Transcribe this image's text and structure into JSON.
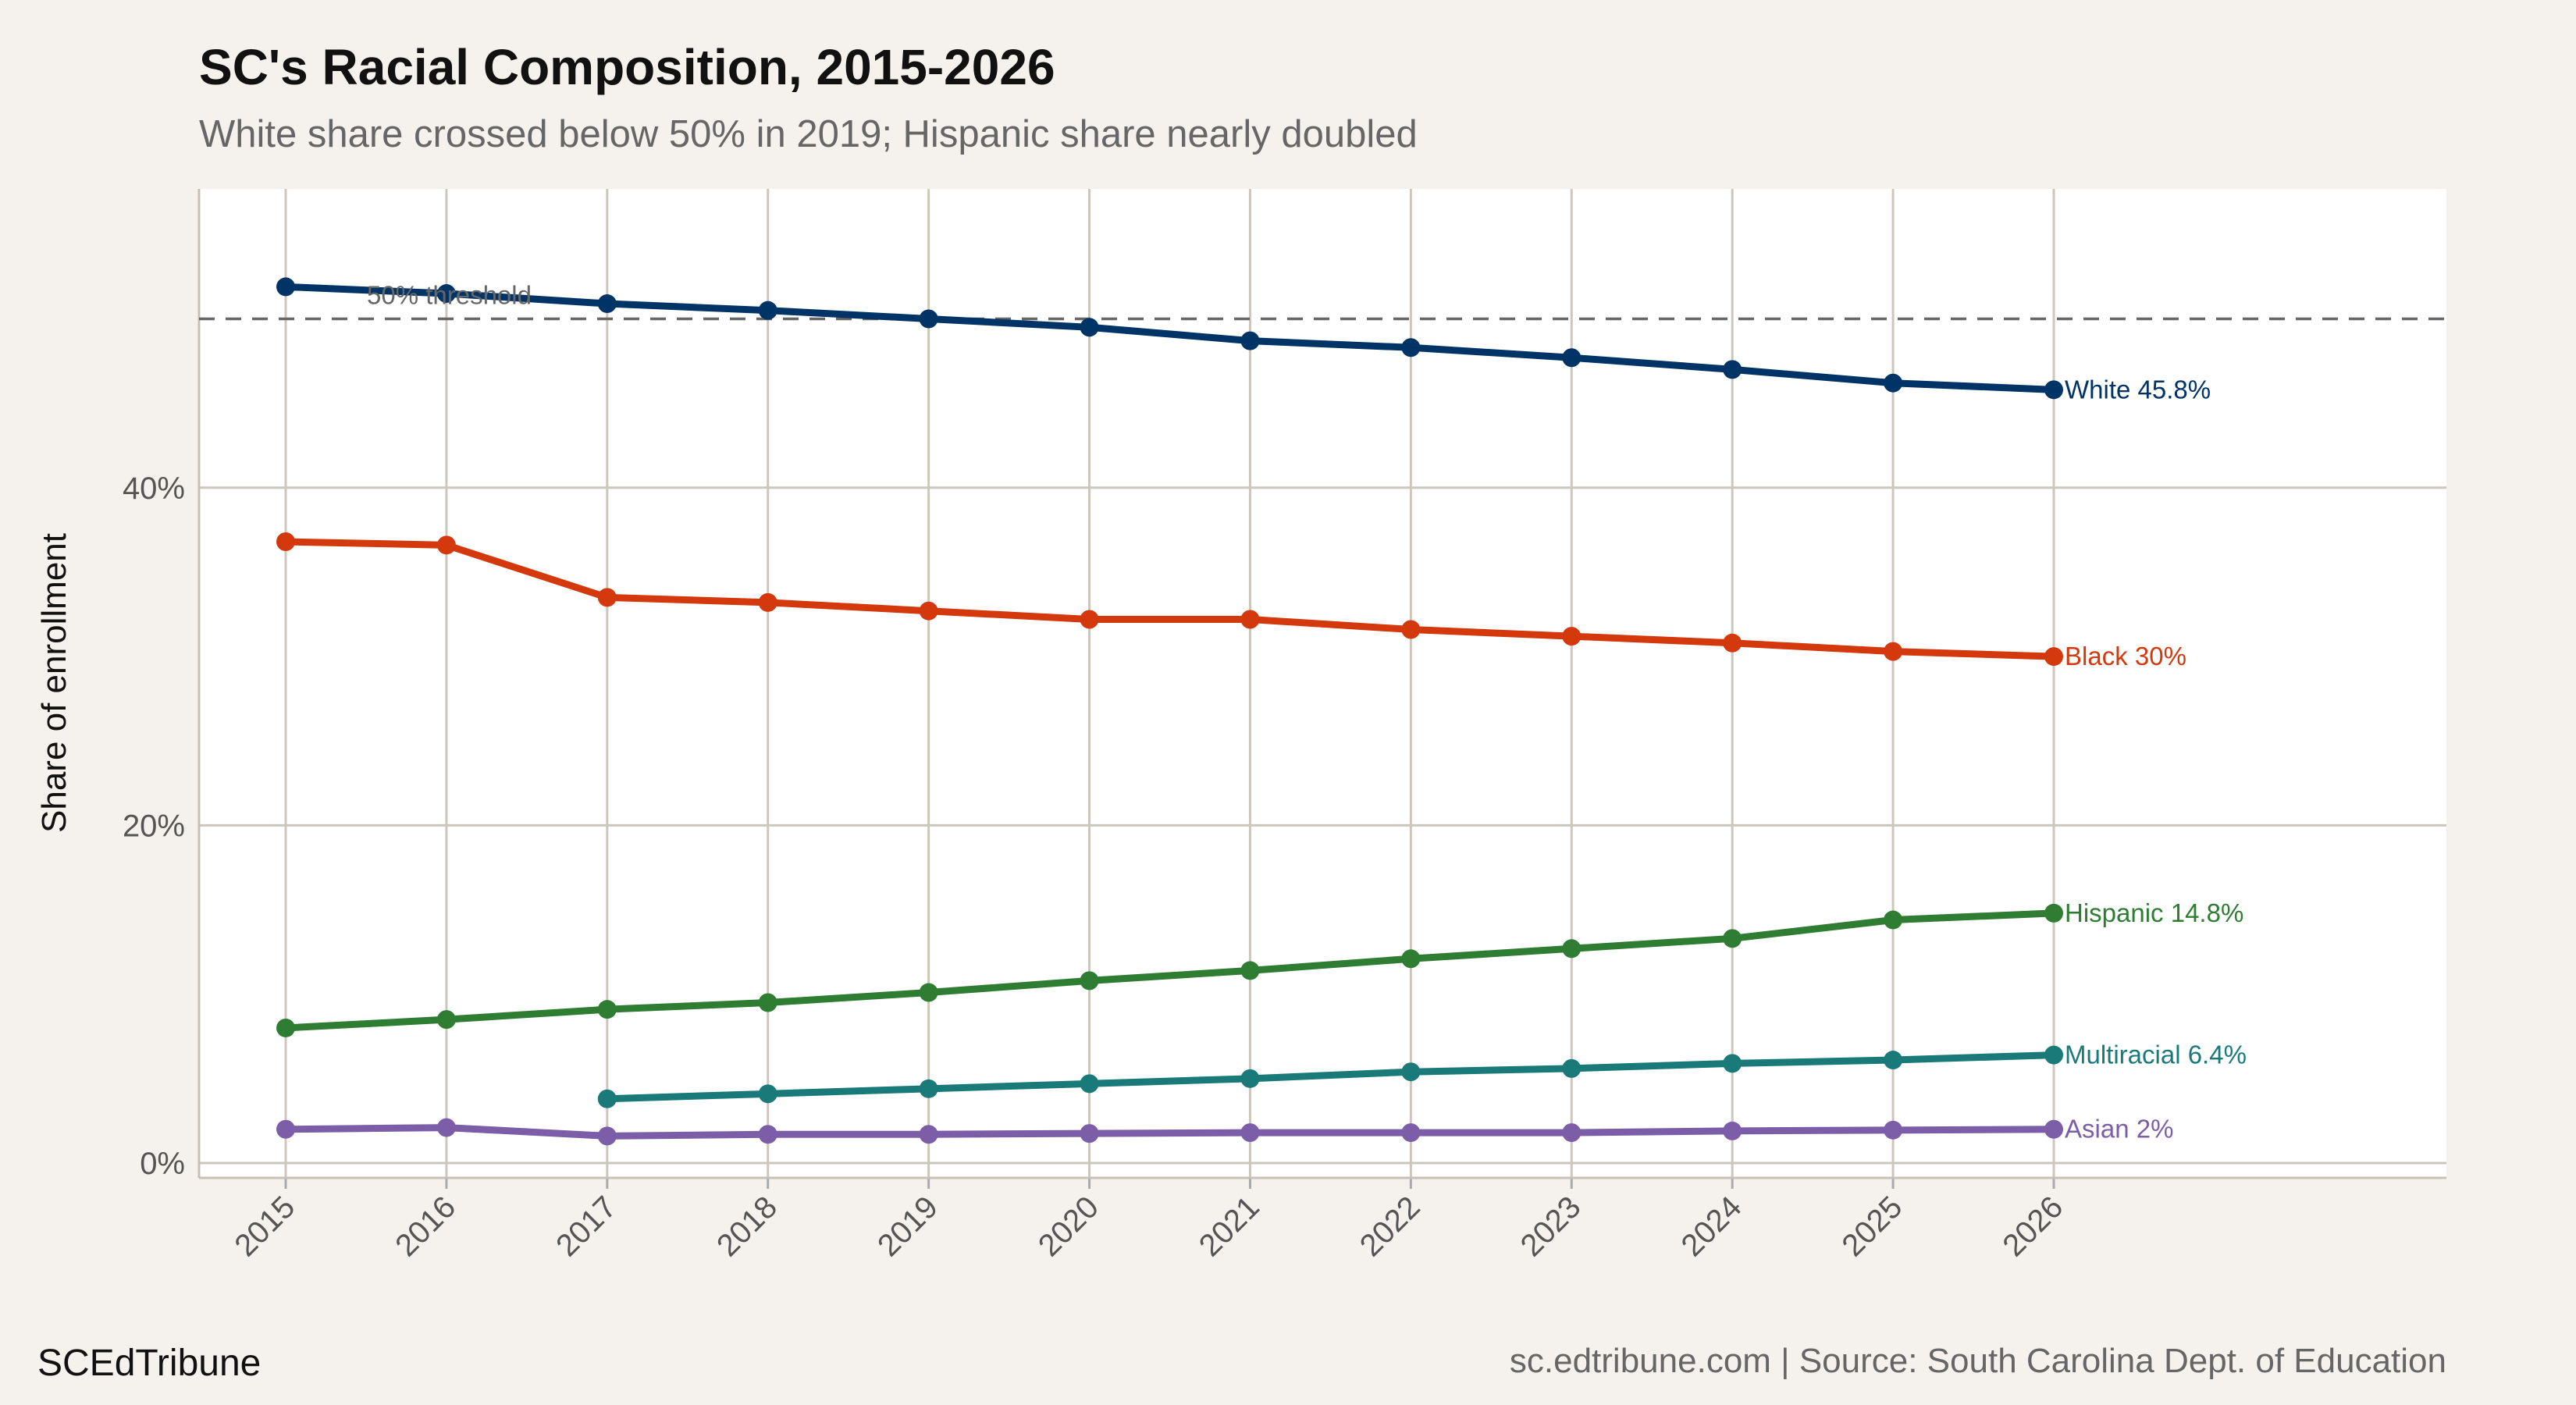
{
  "chart_data": {
    "type": "line",
    "title": "SC's Racial Composition, 2015-2026",
    "subtitle": "White share crossed below 50% in 2019; Hispanic share nearly doubled",
    "xlabel": "",
    "ylabel": "Share of enrollment",
    "x": [
      2015,
      2016,
      2017,
      2018,
      2019,
      2020,
      2021,
      2022,
      2023,
      2024,
      2025,
      2026
    ],
    "x_tick_labels": [
      "2015",
      "2016",
      "2017",
      "2018",
      "2019",
      "2020",
      "2021",
      "2022",
      "2023",
      "2024",
      "2025",
      "2026"
    ],
    "y_ticks": [
      0,
      20,
      40
    ],
    "y_tick_labels": [
      "0%",
      "20%",
      "40%"
    ],
    "ylim": [
      -0.5,
      57
    ],
    "grid": true,
    "reference_line": {
      "value": 50,
      "label": "50% threshold",
      "style": "dashed",
      "color": "#666666"
    },
    "series": [
      {
        "name": "White",
        "end_label": "White 45.8%",
        "color": "#003366",
        "values": [
          51.9,
          51.5,
          50.9,
          50.5,
          50.0,
          49.5,
          48.7,
          48.3,
          47.7,
          47.0,
          46.2,
          45.8
        ]
      },
      {
        "name": "Black",
        "end_label": "Black 30%",
        "color": "#d4380d",
        "values": [
          36.8,
          36.6,
          33.5,
          33.2,
          32.7,
          32.2,
          32.2,
          31.6,
          31.2,
          30.8,
          30.3,
          30.0
        ]
      },
      {
        "name": "Hispanic",
        "end_label": "Hispanic 14.8%",
        "color": "#2e7d32",
        "values": [
          8.0,
          8.5,
          9.1,
          9.5,
          10.1,
          10.8,
          11.4,
          12.1,
          12.7,
          13.3,
          14.4,
          14.8
        ]
      },
      {
        "name": "Multiracial",
        "end_label": "Multiracial 6.4%",
        "color": "#1a7a7a",
        "values": [
          null,
          null,
          3.8,
          4.1,
          4.4,
          4.7,
          5.0,
          5.4,
          5.6,
          5.9,
          6.1,
          6.4
        ]
      },
      {
        "name": "Asian",
        "end_label": "Asian 2%",
        "color": "#7b5ea7",
        "values": [
          2.0,
          2.1,
          1.6,
          1.7,
          1.7,
          1.75,
          1.8,
          1.8,
          1.8,
          1.9,
          1.95,
          2.0
        ]
      }
    ]
  },
  "footer": {
    "brand": "SCEdTribune",
    "source": "sc.edtribune.com | Source: South Carolina Dept. of Education"
  }
}
